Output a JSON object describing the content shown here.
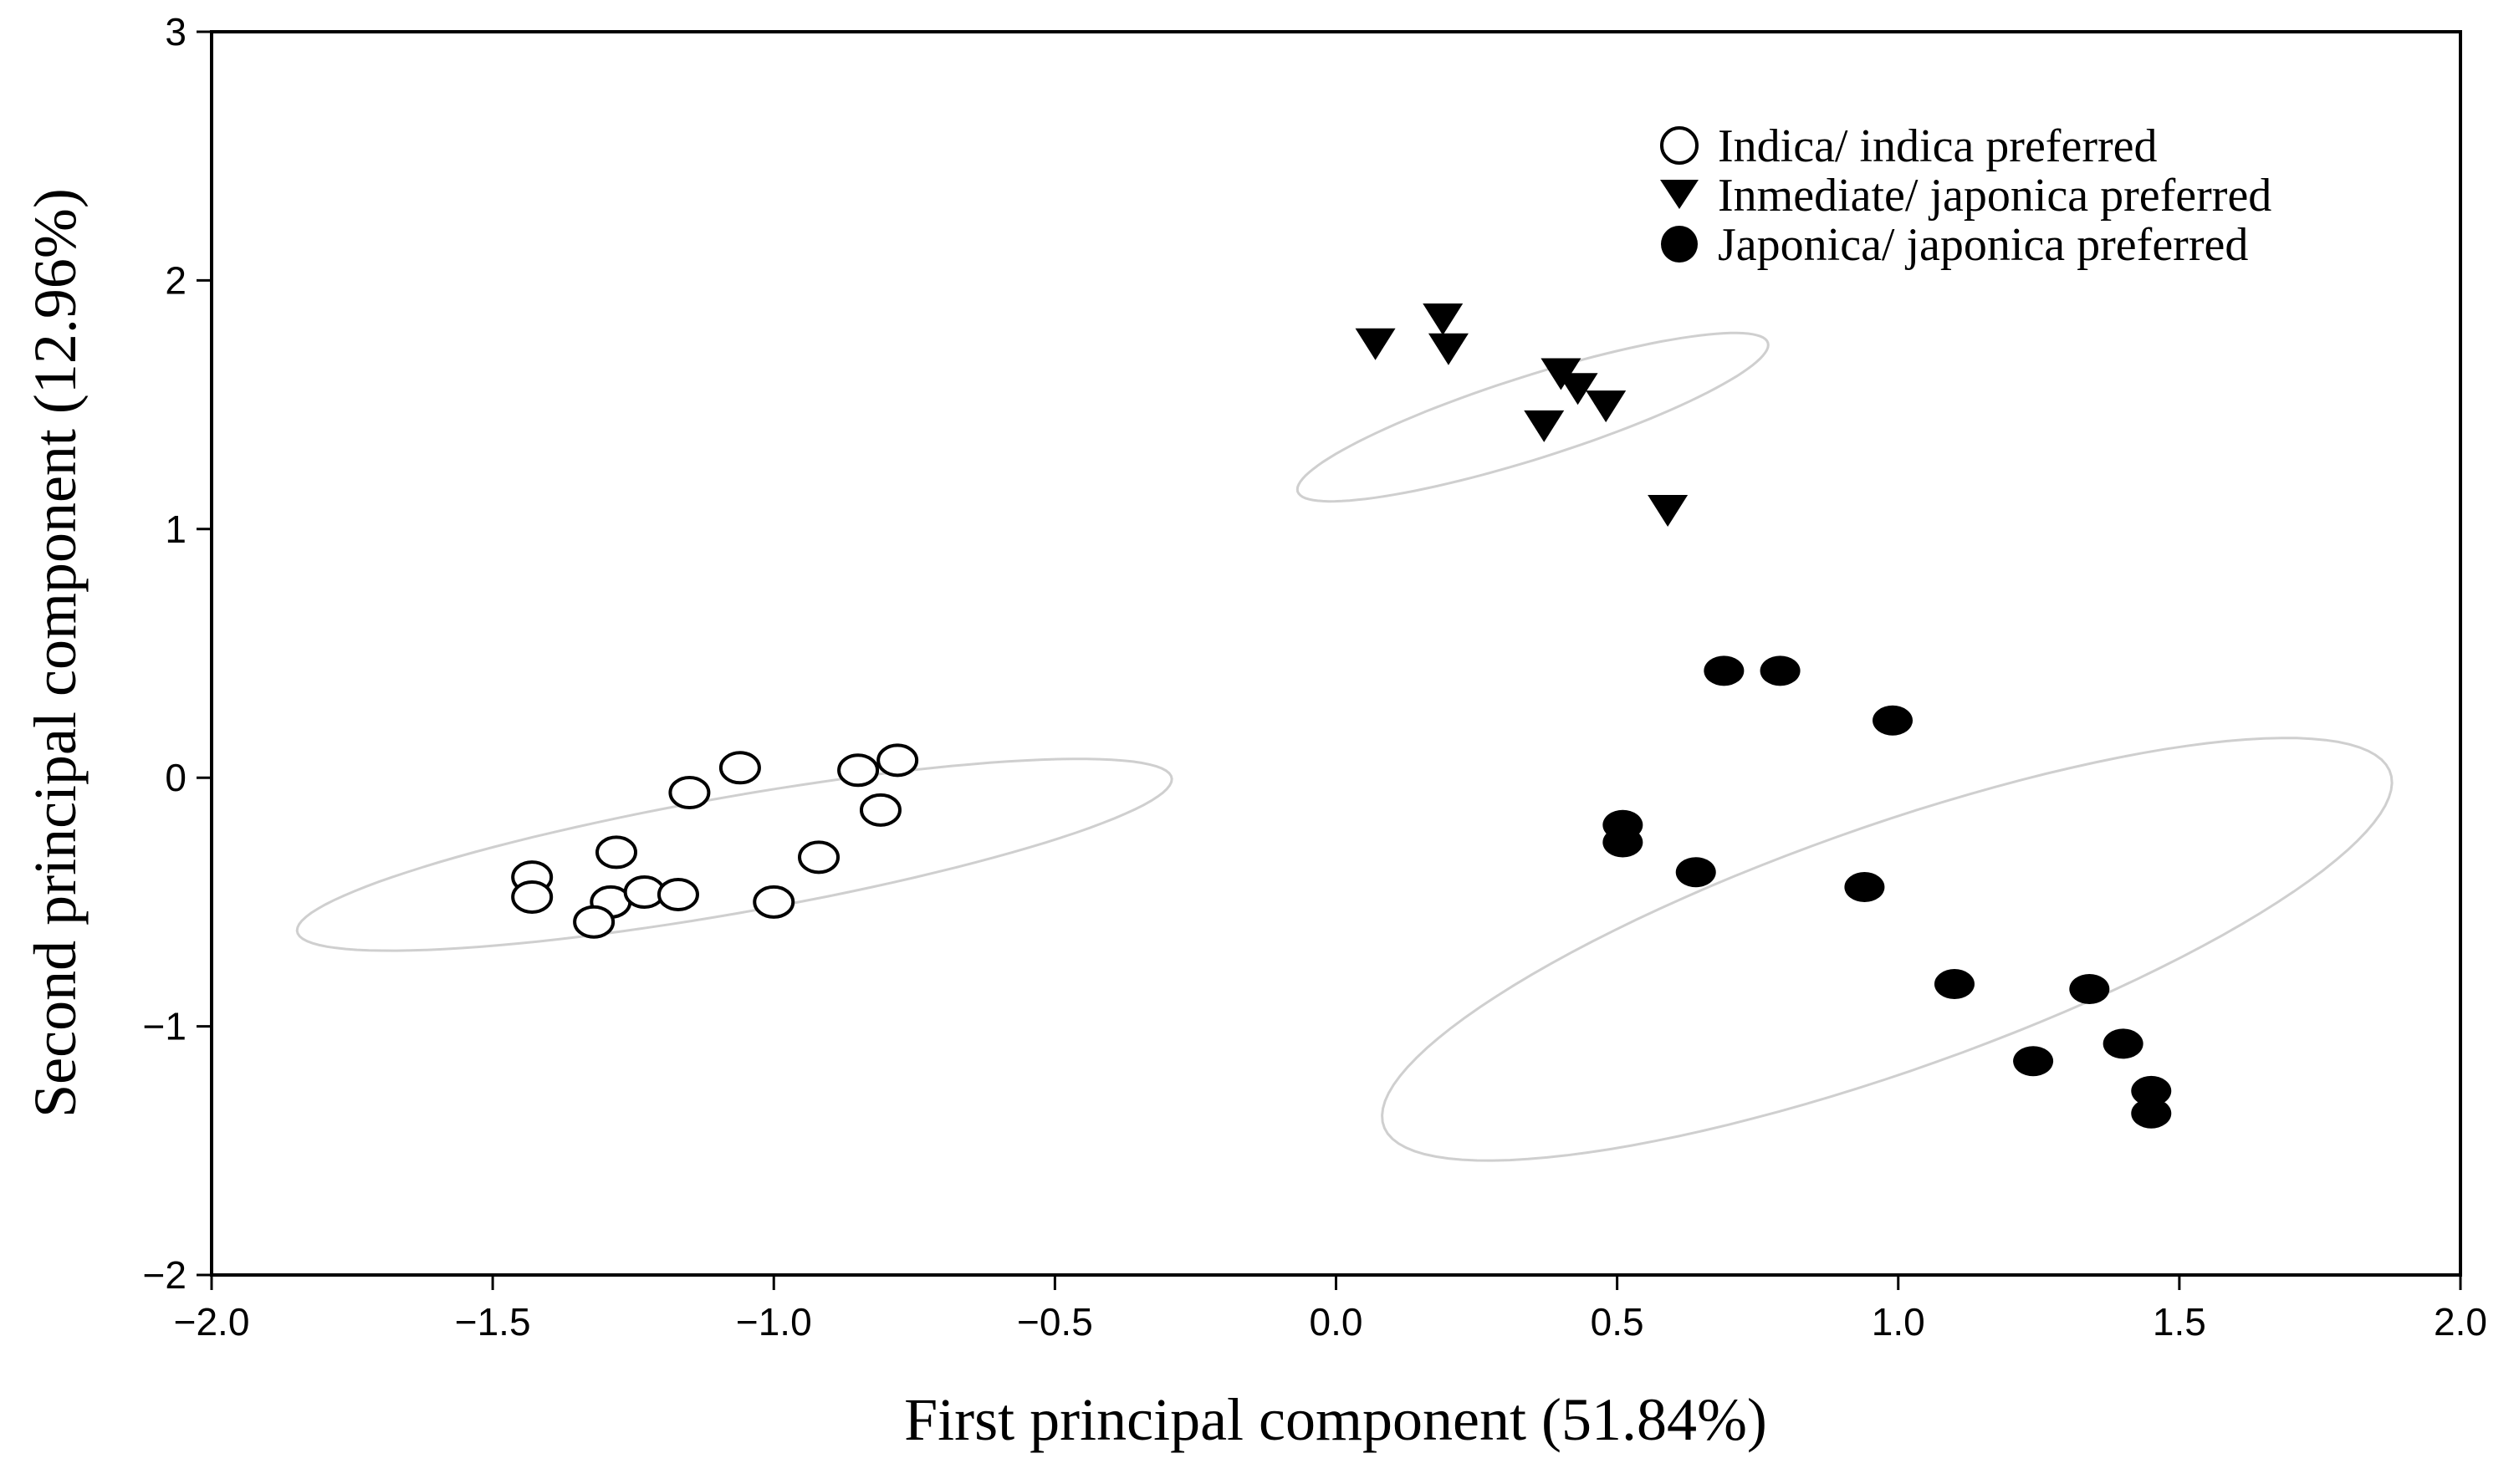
{
  "chart_data": {
    "type": "scatter",
    "title": "",
    "xlabel": "First principal component (51.84%)",
    "ylabel": "Second principal component (12.96%)",
    "xlim": [
      -2.0,
      2.0
    ],
    "ylim": [
      -2,
      3
    ],
    "x_ticks": [
      -2.0,
      -1.5,
      -1.0,
      -0.5,
      0.0,
      0.5,
      1.0,
      1.5,
      2.0
    ],
    "x_tick_labels": [
      "−2.0",
      "−1.5",
      "−1.0",
      "−0.5",
      "0.0",
      "0.5",
      "1.0",
      "1.5",
      "2.0"
    ],
    "y_ticks": [
      -2,
      -1,
      0,
      1,
      2,
      3
    ],
    "y_tick_labels": [
      "−2",
      "−1",
      "0",
      "1",
      "2",
      "3"
    ],
    "grid": false,
    "legend_position": "top-right",
    "series": [
      {
        "name": "Indica/ indica preferred",
        "marker": "open-circle",
        "points": [
          [
            -1.43,
            -0.4
          ],
          [
            -1.43,
            -0.48
          ],
          [
            -1.28,
            -0.3
          ],
          [
            -1.29,
            -0.5
          ],
          [
            -1.32,
            -0.58
          ],
          [
            -1.23,
            -0.46
          ],
          [
            -1.17,
            -0.47
          ],
          [
            -1.15,
            -0.06
          ],
          [
            -1.06,
            0.04
          ],
          [
            -1.0,
            -0.5
          ],
          [
            -0.92,
            -0.32
          ],
          [
            -0.85,
            0.03
          ],
          [
            -0.81,
            -0.13
          ],
          [
            -0.78,
            0.07
          ]
        ],
        "ellipse": {
          "cx": -1.07,
          "cy": -0.31,
          "rx": 0.84,
          "ry": 0.22,
          "angle_deg": 23
        }
      },
      {
        "name": "Inmediate/ japonica preferred",
        "marker": "down-triangle",
        "points": [
          [
            0.07,
            1.75
          ],
          [
            0.19,
            1.85
          ],
          [
            0.2,
            1.73
          ],
          [
            0.37,
            1.42
          ],
          [
            0.4,
            1.63
          ],
          [
            0.43,
            1.57
          ],
          [
            0.48,
            1.5
          ],
          [
            0.59,
            1.08
          ]
        ],
        "ellipse": {
          "cx": 0.35,
          "cy": 1.45,
          "rx": 0.52,
          "ry": 0.14,
          "angle_deg": 38
        }
      },
      {
        "name": "Japonica/ japonica preferred",
        "marker": "filled-circle",
        "points": [
          [
            0.51,
            -0.19
          ],
          [
            0.51,
            -0.26
          ],
          [
            0.64,
            -0.38
          ],
          [
            0.69,
            0.43
          ],
          [
            0.79,
            0.43
          ],
          [
            0.94,
            -0.44
          ],
          [
            0.99,
            0.23
          ],
          [
            1.1,
            -0.83
          ],
          [
            1.24,
            -1.14
          ],
          [
            1.34,
            -0.85
          ],
          [
            1.4,
            -1.07
          ],
          [
            1.45,
            -1.26
          ],
          [
            1.45,
            -1.35
          ]
        ],
        "ellipse": {
          "cx": 0.98,
          "cy": -0.69,
          "rx": 1.17,
          "ry": 0.4,
          "angle_deg": 43
        }
      }
    ]
  }
}
